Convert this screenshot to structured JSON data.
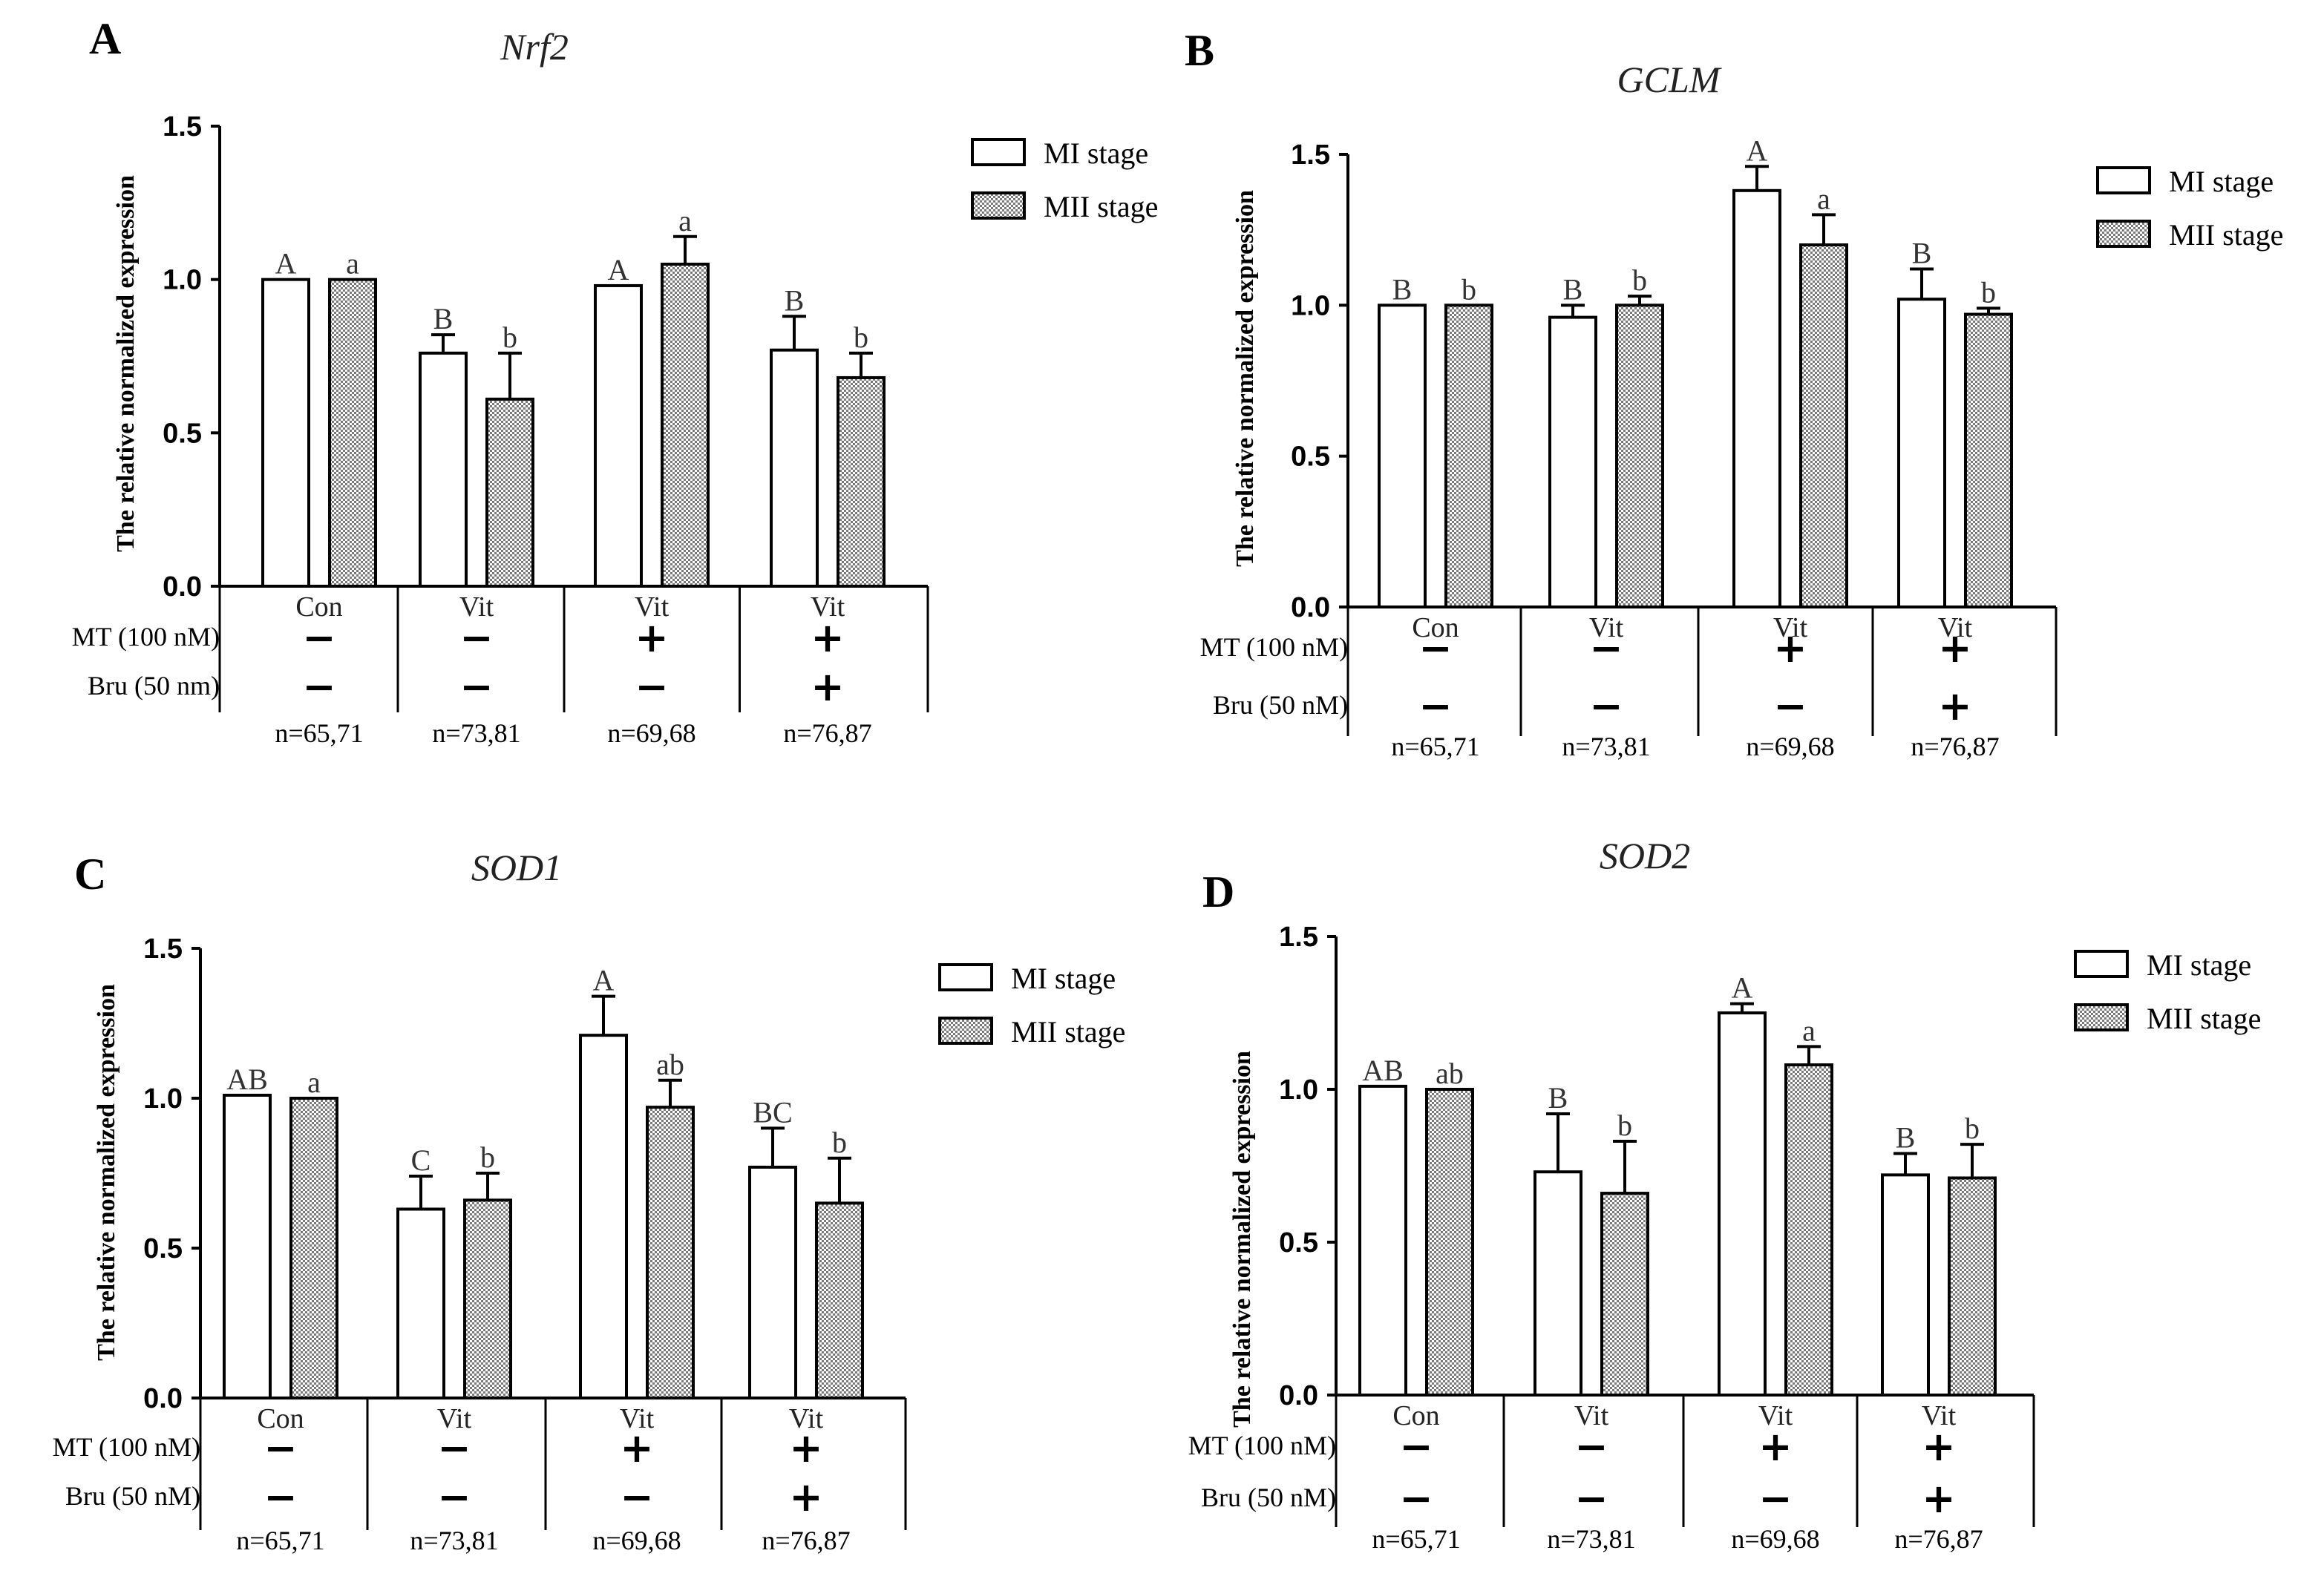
{
  "chart_data": [
    {
      "type": "bar",
      "panel": "A",
      "title": "Nrf2",
      "ylabel": "The relative normalized expression",
      "ylim": [
        0,
        1.5
      ],
      "yticks": [
        "0.0",
        "0.5",
        "1.0",
        "1.5"
      ],
      "categories": [
        "Con",
        "Vit",
        "Vit",
        "Vit"
      ],
      "treatments": [
        {
          "label": "MT (100 nM)",
          "signs": [
            "−",
            "−",
            "+",
            "+"
          ]
        },
        {
          "label": "Bru (50 nm)",
          "signs": [
            "−",
            "−",
            "−",
            "+"
          ]
        }
      ],
      "n_labels": [
        "n=65,71",
        "n=73,81",
        "n=69,68",
        "n=76,87"
      ],
      "series": [
        {
          "name": "MI stage",
          "pattern": "open",
          "values": [
            1.0,
            0.76,
            0.98,
            0.77
          ],
          "errors": [
            0.0,
            0.06,
            0.0,
            0.11
          ],
          "sig": [
            "A",
            "B",
            "A",
            "B"
          ]
        },
        {
          "name": "MII stage",
          "pattern": "dotted",
          "values": [
            1.0,
            0.61,
            1.05,
            0.68
          ],
          "errors": [
            0.0,
            0.15,
            0.09,
            0.08
          ],
          "sig": [
            "a",
            "b",
            "a",
            "b"
          ]
        }
      ]
    },
    {
      "type": "bar",
      "panel": "B",
      "title": "GCLM",
      "ylabel": "The relative normalized expression",
      "ylim": [
        0,
        1.5
      ],
      "yticks": [
        "0.0",
        "0.5",
        "1.0",
        "1.5"
      ],
      "categories": [
        "Con",
        "Vit",
        "Vit",
        "Vit"
      ],
      "treatments": [
        {
          "label": "MT (100 nM)",
          "signs": [
            "−",
            "−",
            "+",
            "+"
          ]
        },
        {
          "label": "Bru (50 nM)",
          "signs": [
            "−",
            "−",
            "−",
            "+"
          ]
        }
      ],
      "n_labels": [
        "n=65,71",
        "n=73,81",
        "n=69,68",
        "n=76,87"
      ],
      "series": [
        {
          "name": "MI stage",
          "pattern": "open",
          "values": [
            1.0,
            0.96,
            1.38,
            1.02
          ],
          "errors": [
            0.0,
            0.04,
            0.08,
            0.1
          ],
          "sig": [
            "B",
            "B",
            "A",
            "B"
          ]
        },
        {
          "name": "MII stage",
          "pattern": "dotted",
          "values": [
            1.0,
            1.0,
            1.2,
            0.97
          ],
          "errors": [
            0.0,
            0.03,
            0.1,
            0.02
          ],
          "sig": [
            "b",
            "b",
            "a",
            "b"
          ]
        }
      ]
    },
    {
      "type": "bar",
      "panel": "C",
      "title": "SOD1",
      "ylabel": "The relative normalized expression",
      "ylim": [
        0,
        1.5
      ],
      "yticks": [
        "0.0",
        "0.5",
        "1.0",
        "1.5"
      ],
      "categories": [
        "Con",
        "Vit",
        "Vit",
        "Vit"
      ],
      "treatments": [
        {
          "label": "MT (100 nM)",
          "signs": [
            "−",
            "−",
            "+",
            "+"
          ]
        },
        {
          "label": "Bru (50 nM)",
          "signs": [
            "−",
            "−",
            "−",
            "+"
          ]
        }
      ],
      "n_labels": [
        "n=65,71",
        "n=73,81",
        "n=69,68",
        "n=76,87"
      ],
      "series": [
        {
          "name": "MI stage",
          "pattern": "open",
          "values": [
            1.01,
            0.63,
            1.21,
            0.77
          ],
          "errors": [
            0.0,
            0.11,
            0.13,
            0.13
          ],
          "sig": [
            "AB",
            "C",
            "A",
            "BC"
          ]
        },
        {
          "name": "MII stage",
          "pattern": "dotted",
          "values": [
            1.0,
            0.66,
            0.97,
            0.65
          ],
          "errors": [
            0.0,
            0.09,
            0.09,
            0.15
          ],
          "sig": [
            "a",
            "b",
            "ab",
            "b"
          ]
        }
      ]
    },
    {
      "type": "bar",
      "panel": "D",
      "title": "SOD2",
      "ylabel": "The relative normalized expression",
      "ylim": [
        0,
        1.5
      ],
      "yticks": [
        "0.0",
        "0.5",
        "1.0",
        "1.5"
      ],
      "categories": [
        "Con",
        "Vit",
        "Vit",
        "Vit"
      ],
      "treatments": [
        {
          "label": "MT (100 nM)",
          "signs": [
            "−",
            "−",
            "+",
            "+"
          ]
        },
        {
          "label": "Bru (50 nM)",
          "signs": [
            "−",
            "−",
            "−",
            "+"
          ]
        }
      ],
      "n_labels": [
        "n=65,71",
        "n=73,81",
        "n=69,68",
        "n=76,87"
      ],
      "series": [
        {
          "name": "MI stage",
          "pattern": "open",
          "values": [
            1.01,
            0.73,
            1.25,
            0.72
          ],
          "errors": [
            0.0,
            0.19,
            0.03,
            0.07
          ],
          "sig": [
            "AB",
            "B",
            "A",
            "B"
          ]
        },
        {
          "name": "MII stage",
          "pattern": "dotted",
          "values": [
            1.0,
            0.66,
            1.08,
            0.71
          ],
          "errors": [
            0.0,
            0.17,
            0.06,
            0.11
          ],
          "sig": [
            "ab",
            "b",
            "a",
            "b"
          ]
        }
      ]
    }
  ]
}
